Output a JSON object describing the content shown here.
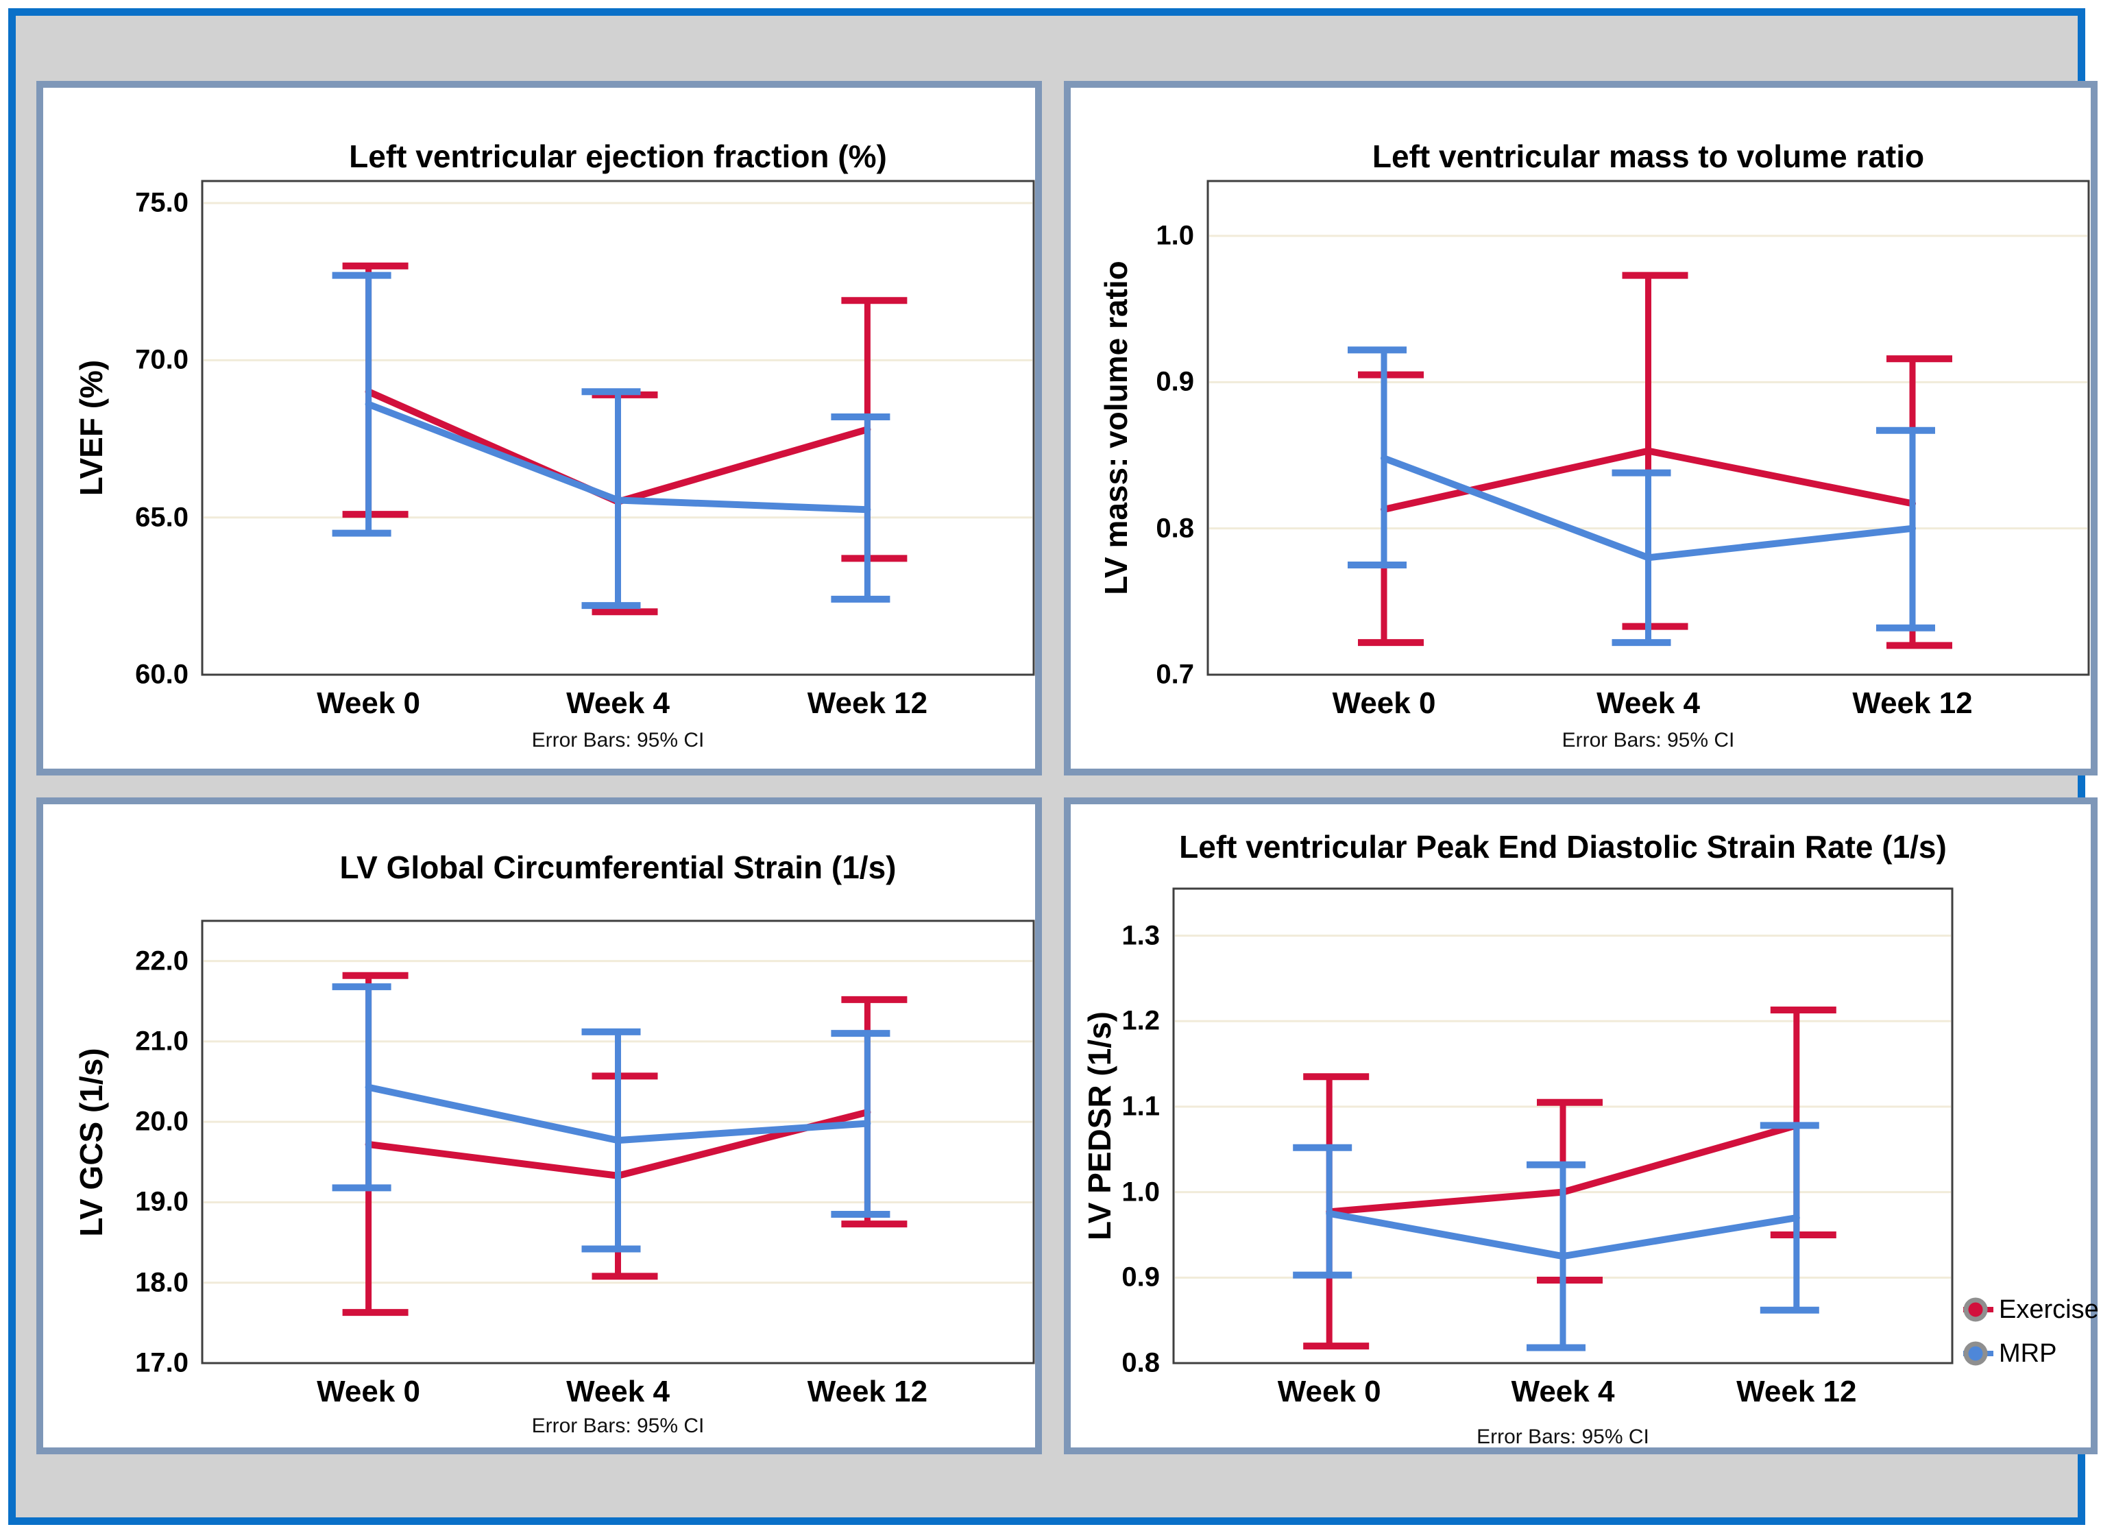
{
  "page": {
    "background": "#d2d2d2",
    "outer_border_color": "#0a70c8",
    "panel_border_color": "#7e97b8"
  },
  "colors": {
    "exercise": "#d2103c",
    "mrp": "#4e87d9",
    "gridline": "#f1ebd9",
    "plot_frame": "#3f3f3f"
  },
  "legend": {
    "items": [
      {
        "label": "Exercise",
        "color": "#d2103c"
      },
      {
        "label": "MRP",
        "color": "#4e87d9"
      }
    ]
  },
  "chart_data": [
    {
      "id": "lvef",
      "type": "line",
      "title": "Left ventricular ejection fraction (%)",
      "ylabel": "LVEF (%)",
      "caption": "Error Bars: 95% CI",
      "error_bars": "95% CI",
      "categories": [
        "Week 0",
        "Week 4",
        "Week 12"
      ],
      "yticks": [
        60,
        65,
        70,
        75
      ],
      "ytick_labels": [
        "60.0",
        "65.0",
        "70.0",
        "75.0"
      ],
      "ylim": [
        60,
        75.7
      ],
      "series": [
        {
          "name": "Exercise",
          "color": "#d2103c",
          "means": [
            69.0,
            65.5,
            67.8
          ],
          "ci_low": [
            65.1,
            62.0,
            63.7
          ],
          "ci_high": [
            73.0,
            68.9,
            71.9
          ]
        },
        {
          "name": "MRP",
          "color": "#4e87d9",
          "means": [
            68.6,
            65.55,
            65.25
          ],
          "ci_low": [
            64.5,
            62.2,
            62.4
          ],
          "ci_high": [
            72.7,
            69.0,
            68.2
          ]
        }
      ]
    },
    {
      "id": "lv-mass-volume",
      "type": "line",
      "title": "Left ventricular mass to volume ratio",
      "ylabel": "LV mass: volume ratio",
      "caption": "Error Bars: 95% CI",
      "error_bars": "95% CI",
      "categories": [
        "Week 0",
        "Week 4",
        "Week 12"
      ],
      "yticks": [
        0.7,
        0.8,
        0.9,
        1.0
      ],
      "ytick_labels": [
        "0.7",
        "0.8",
        "0.9",
        "1.0"
      ],
      "ylim": [
        0.7,
        1.0375
      ],
      "series": [
        {
          "name": "Exercise",
          "color": "#d2103c",
          "means": [
            0.813,
            0.853,
            0.817
          ],
          "ci_low": [
            0.722,
            0.733,
            0.72
          ],
          "ci_high": [
            0.905,
            0.973,
            0.916
          ]
        },
        {
          "name": "MRP",
          "color": "#4e87d9",
          "means": [
            0.848,
            0.78,
            0.8
          ],
          "ci_low": [
            0.775,
            0.722,
            0.732
          ],
          "ci_high": [
            0.922,
            0.838,
            0.867
          ]
        }
      ]
    },
    {
      "id": "lv-gcs",
      "type": "line",
      "title": "LV Global Circumferential Strain (1/s)",
      "ylabel": "LV GCS (1/s)",
      "caption": "Error Bars: 95% CI",
      "error_bars": "95% CI",
      "categories": [
        "Week 0",
        "Week 4",
        "Week 12"
      ],
      "yticks": [
        17,
        18,
        19,
        20,
        21,
        22
      ],
      "ytick_labels": [
        "17.0",
        "18.0",
        "19.0",
        "20.0",
        "21.0",
        "22.0"
      ],
      "ylim": [
        17,
        22.5
      ],
      "series": [
        {
          "name": "Exercise",
          "color": "#d2103c",
          "means": [
            19.72,
            19.33,
            20.12
          ],
          "ci_low": [
            17.63,
            18.08,
            18.73
          ],
          "ci_high": [
            21.82,
            20.57,
            21.52
          ]
        },
        {
          "name": "MRP",
          "color": "#4e87d9",
          "means": [
            20.43,
            19.77,
            19.98
          ],
          "ci_low": [
            19.18,
            18.42,
            18.85
          ],
          "ci_high": [
            21.68,
            21.12,
            21.1
          ]
        }
      ]
    },
    {
      "id": "lv-pedsr",
      "type": "line",
      "title": "Left ventricular Peak End Diastolic Strain Rate (1/s)",
      "ylabel": "LV PEDSR (1/s)",
      "caption": "Error Bars: 95% CI",
      "error_bars": "95% CI",
      "categories": [
        "Week 0",
        "Week 4",
        "Week 12"
      ],
      "yticks": [
        0.8,
        0.9,
        1.0,
        1.1,
        1.2,
        1.3
      ],
      "ytick_labels": [
        "0.8",
        "0.9",
        "1.0",
        "1.1",
        "1.2",
        "1.3"
      ],
      "ylim": [
        0.8,
        1.355
      ],
      "series": [
        {
          "name": "Exercise",
          "color": "#d2103c",
          "means": [
            0.977,
            1.0,
            1.078
          ],
          "ci_low": [
            0.82,
            0.897,
            0.95
          ],
          "ci_high": [
            1.135,
            1.105,
            1.213
          ]
        },
        {
          "name": "MRP",
          "color": "#4e87d9",
          "means": [
            0.975,
            0.925,
            0.97
          ],
          "ci_low": [
            0.903,
            0.818,
            0.862
          ],
          "ci_high": [
            1.052,
            1.032,
            1.078
          ]
        }
      ]
    }
  ]
}
